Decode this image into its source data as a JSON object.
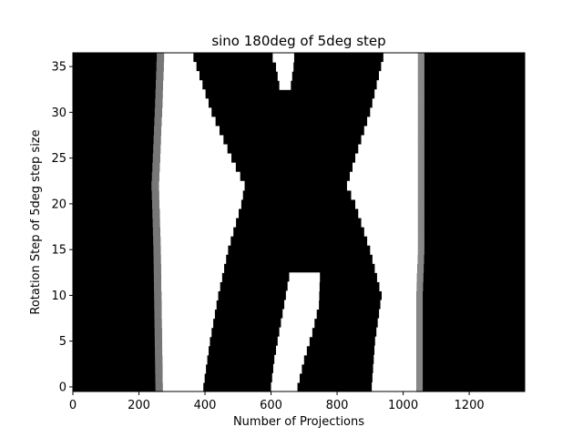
{
  "chart_data": {
    "type": "heatmap",
    "title": "sino 180deg of 5deg step",
    "xlabel": "Number of Projections",
    "ylabel": "Rotation Step of 5deg step size",
    "xlim": [
      0,
      1368
    ],
    "ylim": [
      -0.5,
      36.5
    ],
    "x_ticks": [
      0,
      200,
      400,
      600,
      800,
      1000,
      1200
    ],
    "y_ticks": [
      0,
      5,
      10,
      15,
      20,
      25,
      30,
      35
    ],
    "colormap": "gray",
    "grid": false,
    "legend": "none",
    "rows": 37,
    "bands": {
      "left_white_band": {
        "outer": [
          [
            0,
            272
          ],
          [
            5,
            270
          ],
          [
            10,
            268
          ],
          [
            15,
            266
          ],
          [
            20,
            262
          ],
          [
            22,
            260
          ],
          [
            25,
            264
          ],
          [
            30,
            270
          ],
          [
            36,
            276
          ]
        ],
        "inner": [
          [
            0,
            395
          ],
          [
            5,
            415
          ],
          [
            10,
            440
          ],
          [
            15,
            470
          ],
          [
            20,
            510
          ],
          [
            22,
            520
          ],
          [
            25,
            480
          ],
          [
            30,
            420
          ],
          [
            36,
            365
          ]
        ]
      },
      "center_white_band": {
        "left": [
          [
            0,
            600
          ],
          [
            3,
            610
          ],
          [
            6,
            625
          ],
          [
            9,
            640
          ],
          [
            12,
            655
          ]
        ],
        "right": [
          [
            0,
            680
          ],
          [
            3,
            700
          ],
          [
            6,
            725
          ],
          [
            9,
            745
          ],
          [
            12,
            748
          ]
        ]
      },
      "top_white_notch": {
        "left": [
          [
            33,
            625
          ],
          [
            35,
            615
          ],
          [
            36,
            605
          ]
        ],
        "right": [
          [
            33,
            660
          ],
          [
            35,
            668
          ],
          [
            36,
            670
          ]
        ]
      },
      "right_white_band": {
        "inner": [
          [
            0,
            905
          ],
          [
            5,
            915
          ],
          [
            10,
            935
          ],
          [
            15,
            900
          ],
          [
            20,
            855
          ],
          [
            22,
            830
          ],
          [
            25,
            855
          ],
          [
            30,
            900
          ],
          [
            36,
            940
          ]
        ],
        "outer": [
          [
            0,
            1040
          ],
          [
            5,
            1040
          ],
          [
            10,
            1040
          ],
          [
            15,
            1045
          ],
          [
            20,
            1045
          ],
          [
            22,
            1045
          ],
          [
            25,
            1045
          ],
          [
            30,
            1045
          ],
          [
            36,
            1045
          ]
        ]
      }
    }
  }
}
